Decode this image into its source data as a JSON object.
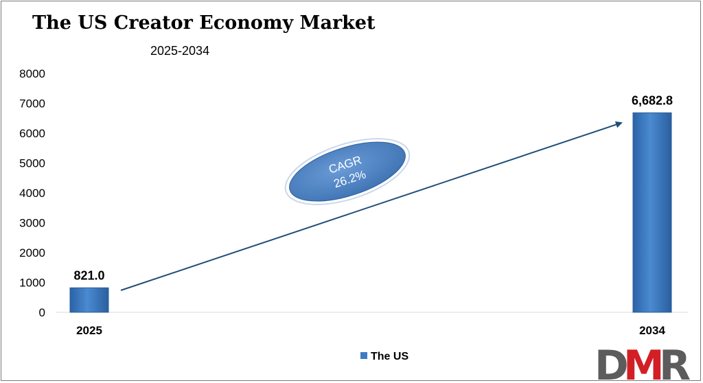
{
  "chart_data": {
    "type": "bar",
    "title": "The US Creator Economy Market",
    "subtitle": "2025-2034",
    "categories": [
      "2025",
      "2034"
    ],
    "series": [
      {
        "name": "The US",
        "values": [
          821.0,
          6682.8
        ],
        "labels": [
          "821.0",
          "6,682.8"
        ]
      }
    ],
    "ylim": [
      0,
      8000
    ],
    "yticks": [
      0,
      1000,
      2000,
      3000,
      4000,
      5000,
      6000,
      7000,
      8000
    ],
    "grid": false,
    "legend": "bottom-center",
    "annotation": {
      "line1": "CAGR",
      "line2": "26.2%"
    }
  },
  "colors": {
    "bar": "#3d7cc4",
    "arrow": "#1f4e79",
    "ellipse": "#4b82c4",
    "logo_dark": "#5c5c5c",
    "logo_red": "#d21f26"
  },
  "logo": {
    "text": "DMR"
  }
}
